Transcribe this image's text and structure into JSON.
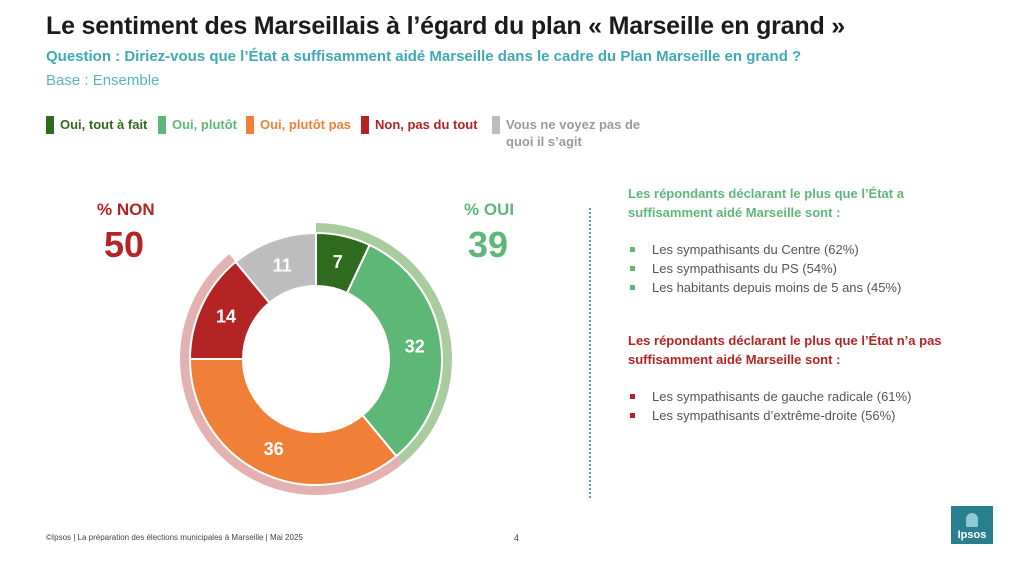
{
  "header": {
    "title": "Le sentiment des Marseillais à l’égard du plan « Marseille en grand »",
    "question": "Question : Diriez-vous que l’État a suffisamment aidé Marseille dans le cadre du Plan Marseille en grand ?",
    "base": "Base : Ensemble"
  },
  "legend": [
    {
      "label": "Oui, tout à fait",
      "color": "#2e6b1f"
    },
    {
      "label": "Oui, plutôt",
      "color": "#5db878"
    },
    {
      "label": "Oui, plutôt pas",
      "color": "#f07f38"
    },
    {
      "label": "Non, pas du tout",
      "color": "#b52424"
    },
    {
      "label": "Vous ne voyez pas de quoi il s’agit",
      "color": "#bdbdbd"
    }
  ],
  "totals": {
    "non_label": "% NON",
    "non_value": "50",
    "non_color": "#b52424",
    "oui_label": "% OUI",
    "oui_value": "39",
    "oui_color": "#5db878"
  },
  "chart_data": {
    "type": "pie",
    "subtype": "donut",
    "categories": [
      "Oui, tout à fait",
      "Oui, plutôt",
      "Oui, plutôt pas",
      "Non, pas du tout",
      "Vous ne voyez pas de quoi il s’agit"
    ],
    "values": [
      7,
      32,
      36,
      14,
      11
    ],
    "colors": [
      "#2e6b1f",
      "#5db878",
      "#f07f38",
      "#b52424",
      "#bdbdbd"
    ],
    "outer_bands": [
      {
        "categories": [
          "Oui, tout à fait",
          "Oui, plutôt"
        ],
        "value": 39,
        "color": "#a9cc9f"
      },
      {
        "categories": [
          "Oui, plutôt pas",
          "Non, pas du tout"
        ],
        "value": 50,
        "color": "#e3b1b1"
      }
    ]
  },
  "panel_oui": {
    "title": "Les répondants déclarant le plus que l’État a suffisamment aidé Marseille sont :",
    "color": "#5db878",
    "items": [
      "Les sympathisants du Centre (62%)",
      "Les sympathisants du PS (54%)",
      "Les habitants depuis moins de 5 ans (45%)"
    ]
  },
  "panel_non": {
    "title": "Les répondants déclarant le plus que l’État n’a pas suffisamment aidé Marseille sont :",
    "color": "#b52424",
    "items": [
      "Les sympathisants de gauche radicale (61%)",
      "Les sympathisants d’extrême-droite (56%)"
    ]
  },
  "footer": {
    "source": "©Ipsos | La préparation des élections municipales à Marseille | Mai 2025",
    "page": "4",
    "logo_text": "Ipsos"
  }
}
